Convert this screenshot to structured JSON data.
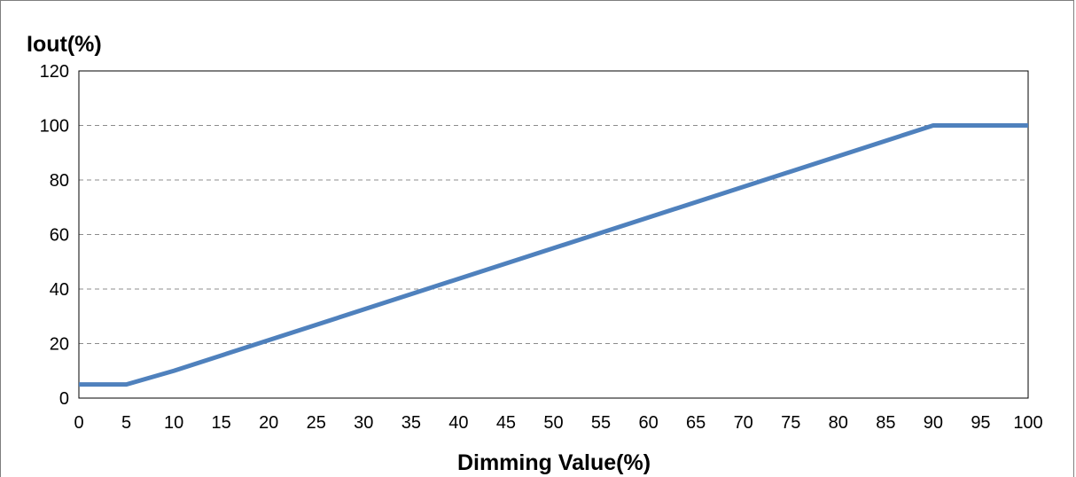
{
  "chart_data": {
    "type": "line",
    "title": "",
    "xlabel": "Dimming Value(%)",
    "ylabel": "Iout(%)",
    "xlim": [
      0,
      100
    ],
    "ylim": [
      0,
      120
    ],
    "x_ticks": [
      0,
      5,
      10,
      15,
      20,
      25,
      30,
      35,
      40,
      45,
      50,
      55,
      60,
      65,
      70,
      75,
      80,
      85,
      90,
      95,
      100
    ],
    "y_ticks": [
      0,
      20,
      40,
      60,
      80,
      100,
      120
    ],
    "grid": "horizontal dashed",
    "legend": "none",
    "series": [
      {
        "color": "#4f81bd",
        "x": [
          0,
          5,
          10,
          90,
          100
        ],
        "y": [
          5,
          5,
          10,
          100,
          100
        ]
      }
    ]
  }
}
